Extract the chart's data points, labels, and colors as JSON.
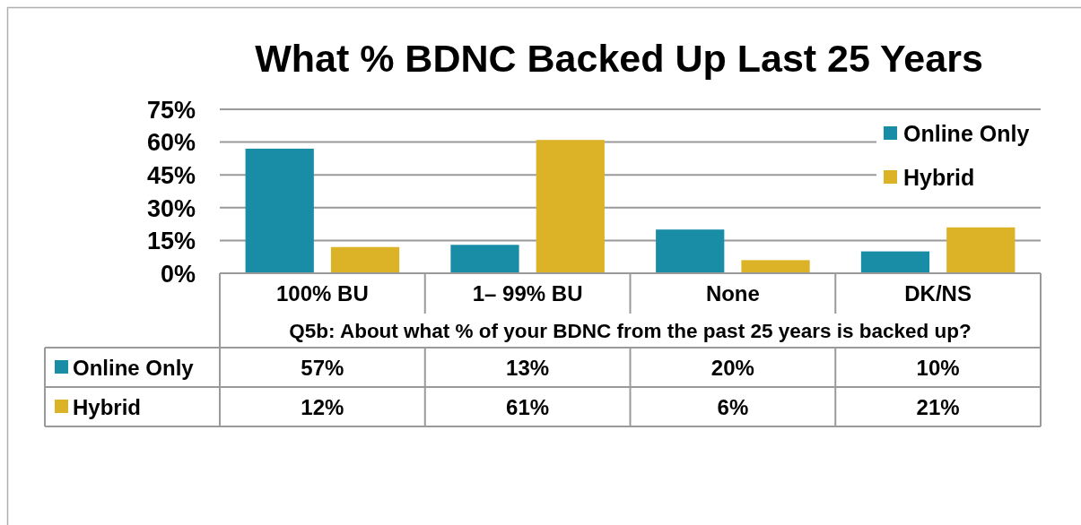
{
  "chart_data": {
    "type": "bar",
    "title": "What % BDNC Backed Up Last 25 Years",
    "xlabel": "Q5b: About what % of your BDNC from the past 25 years is backed up?",
    "categories": [
      "100% BU",
      "1– 99% BU",
      "None",
      "DK/NS"
    ],
    "series": [
      {
        "name": "Online Only",
        "color": "#1a8da6",
        "values": [
          57,
          13,
          20,
          10
        ],
        "value_labels": [
          "57%",
          "13%",
          "20%",
          "10%"
        ]
      },
      {
        "name": "Hybrid",
        "color": "#dcb327",
        "values": [
          12,
          61,
          6,
          21
        ],
        "value_labels": [
          "12%",
          "61%",
          "6%",
          "21%"
        ]
      }
    ],
    "ylim": [
      0,
      75
    ],
    "yticks": [
      {
        "value": 0,
        "label": "0%"
      },
      {
        "value": 15,
        "label": "15%"
      },
      {
        "value": 30,
        "label": "30%"
      },
      {
        "value": 45,
        "label": "45%"
      },
      {
        "value": 60,
        "label": "60%"
      },
      {
        "value": 75,
        "label": "75%"
      }
    ],
    "grid": "y",
    "legend": "top right"
  }
}
